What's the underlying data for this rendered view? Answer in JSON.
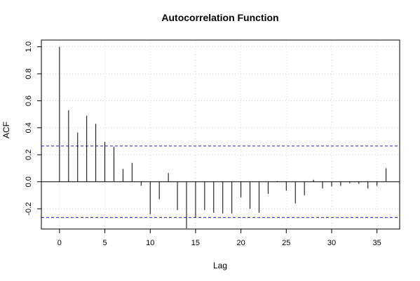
{
  "chart_data": {
    "type": "bar",
    "title": "Autocorrelation Function",
    "xlabel": "Lag",
    "ylabel": "ACF",
    "xlim": [
      -2,
      37.5
    ],
    "ylim": [
      -0.35,
      1.05
    ],
    "x_ticks": [
      0,
      5,
      10,
      15,
      20,
      25,
      30,
      35
    ],
    "y_ticks": [
      -0.2,
      0.0,
      0.2,
      0.4,
      0.6,
      0.8,
      1.0
    ],
    "y_tick_labels": [
      "-0.2",
      "0.0",
      "0.2",
      "0.4",
      "0.6",
      "0.8",
      "1.0"
    ],
    "grid": true,
    "confidence_bounds": [
      0.265,
      -0.265
    ],
    "series": [
      {
        "lags": [
          0,
          1,
          2,
          3,
          4,
          5,
          6,
          7,
          8,
          9,
          10,
          11,
          12,
          13,
          14,
          15,
          16,
          17,
          18,
          19,
          20,
          21,
          22,
          23,
          24,
          25,
          26,
          27,
          28,
          29,
          30,
          31,
          32,
          33,
          34,
          35,
          36
        ],
        "values": [
          1.0,
          0.53,
          0.365,
          0.49,
          0.43,
          0.295,
          0.26,
          0.095,
          0.14,
          -0.03,
          -0.24,
          -0.13,
          0.065,
          -0.21,
          -0.345,
          -0.265,
          -0.21,
          -0.23,
          -0.235,
          -0.235,
          -0.115,
          -0.2,
          -0.23,
          -0.09,
          0.005,
          -0.065,
          -0.16,
          -0.1,
          0.015,
          -0.05,
          -0.035,
          -0.03,
          -0.01,
          -0.015,
          -0.05,
          -0.03,
          0.1
        ]
      }
    ],
    "colors": {
      "bars": "#000000",
      "bounds": "#2222cc",
      "grid": "#d8d8d8",
      "frame": "#000000"
    }
  }
}
